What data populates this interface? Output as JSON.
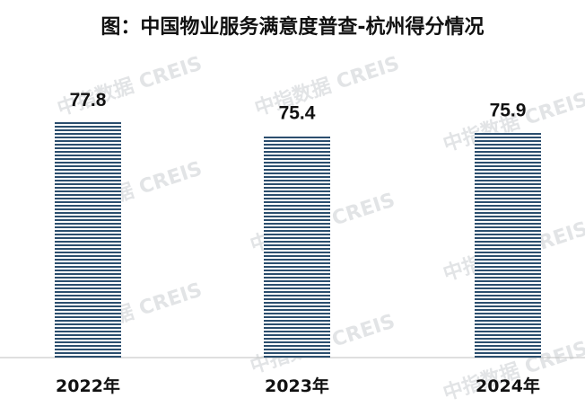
{
  "chart_data": {
    "type": "bar",
    "title": "图：中国物业服务满意度普查-杭州得分情况",
    "categories": [
      "2022年",
      "2023年",
      "2024年"
    ],
    "values": [
      77.8,
      75.4,
      75.9
    ],
    "xlabel": "",
    "ylabel": "",
    "grid": false,
    "legend": "none",
    "bar_color": "#2b4e6e"
  },
  "watermark": {
    "text": "中指数据 CREIS"
  }
}
